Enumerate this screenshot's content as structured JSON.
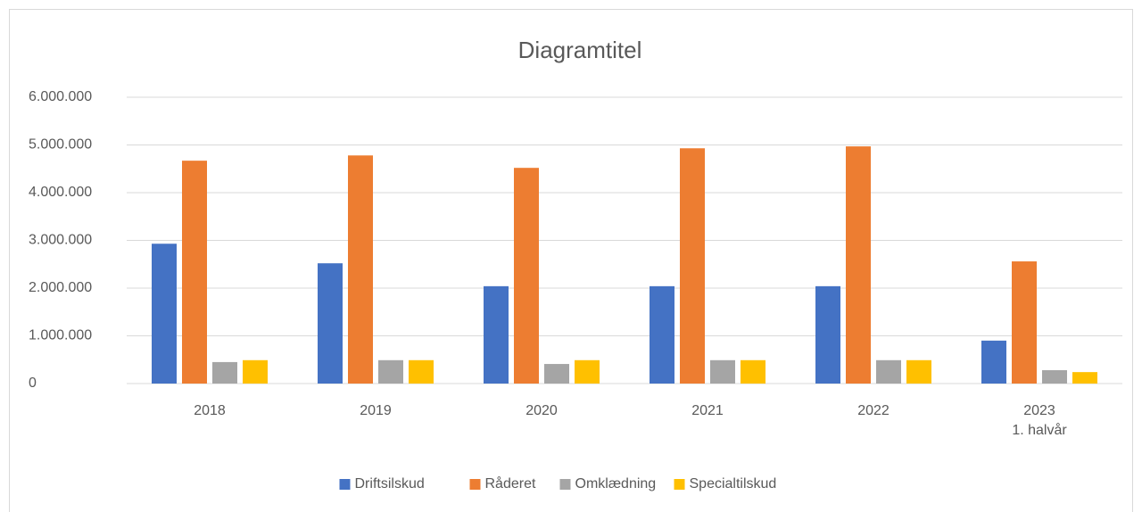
{
  "chart_data": {
    "type": "bar",
    "title": "Diagramtitel",
    "categories": [
      "2018",
      "2019",
      "2020",
      "2021",
      "2022",
      "2023\n1. halvår"
    ],
    "series": [
      {
        "name": "Driftsilskud",
        "color": "#4472c4",
        "values": [
          2930000,
          2520000,
          2040000,
          2040000,
          2040000,
          900000
        ]
      },
      {
        "name": "Råderet",
        "color": "#ed7d31",
        "values": [
          4670000,
          4780000,
          4520000,
          4930000,
          4970000,
          2560000
        ]
      },
      {
        "name": "Omklædning",
        "color": "#a5a5a5",
        "values": [
          450000,
          490000,
          410000,
          490000,
          490000,
          280000
        ]
      },
      {
        "name": "Specialtilskud",
        "color": "#ffc000",
        "values": [
          490000,
          490000,
          490000,
          490000,
          490000,
          240000
        ]
      }
    ],
    "ylim": [
      0,
      6000000
    ],
    "yticks": [
      0,
      {
        "value": 1000000,
        "label": "1.000.000"
      },
      {
        "value": 2000000,
        "label": "2.000.000"
      },
      {
        "value": 3000000,
        "label": "3.000.000"
      },
      {
        "value": 4000000,
        "label": "4.000.000"
      },
      {
        "value": 5000000,
        "label": "5.000.000"
      },
      {
        "value": 6000000,
        "label": "6.000.000"
      }
    ],
    "grid": true,
    "legend": "bottom"
  }
}
